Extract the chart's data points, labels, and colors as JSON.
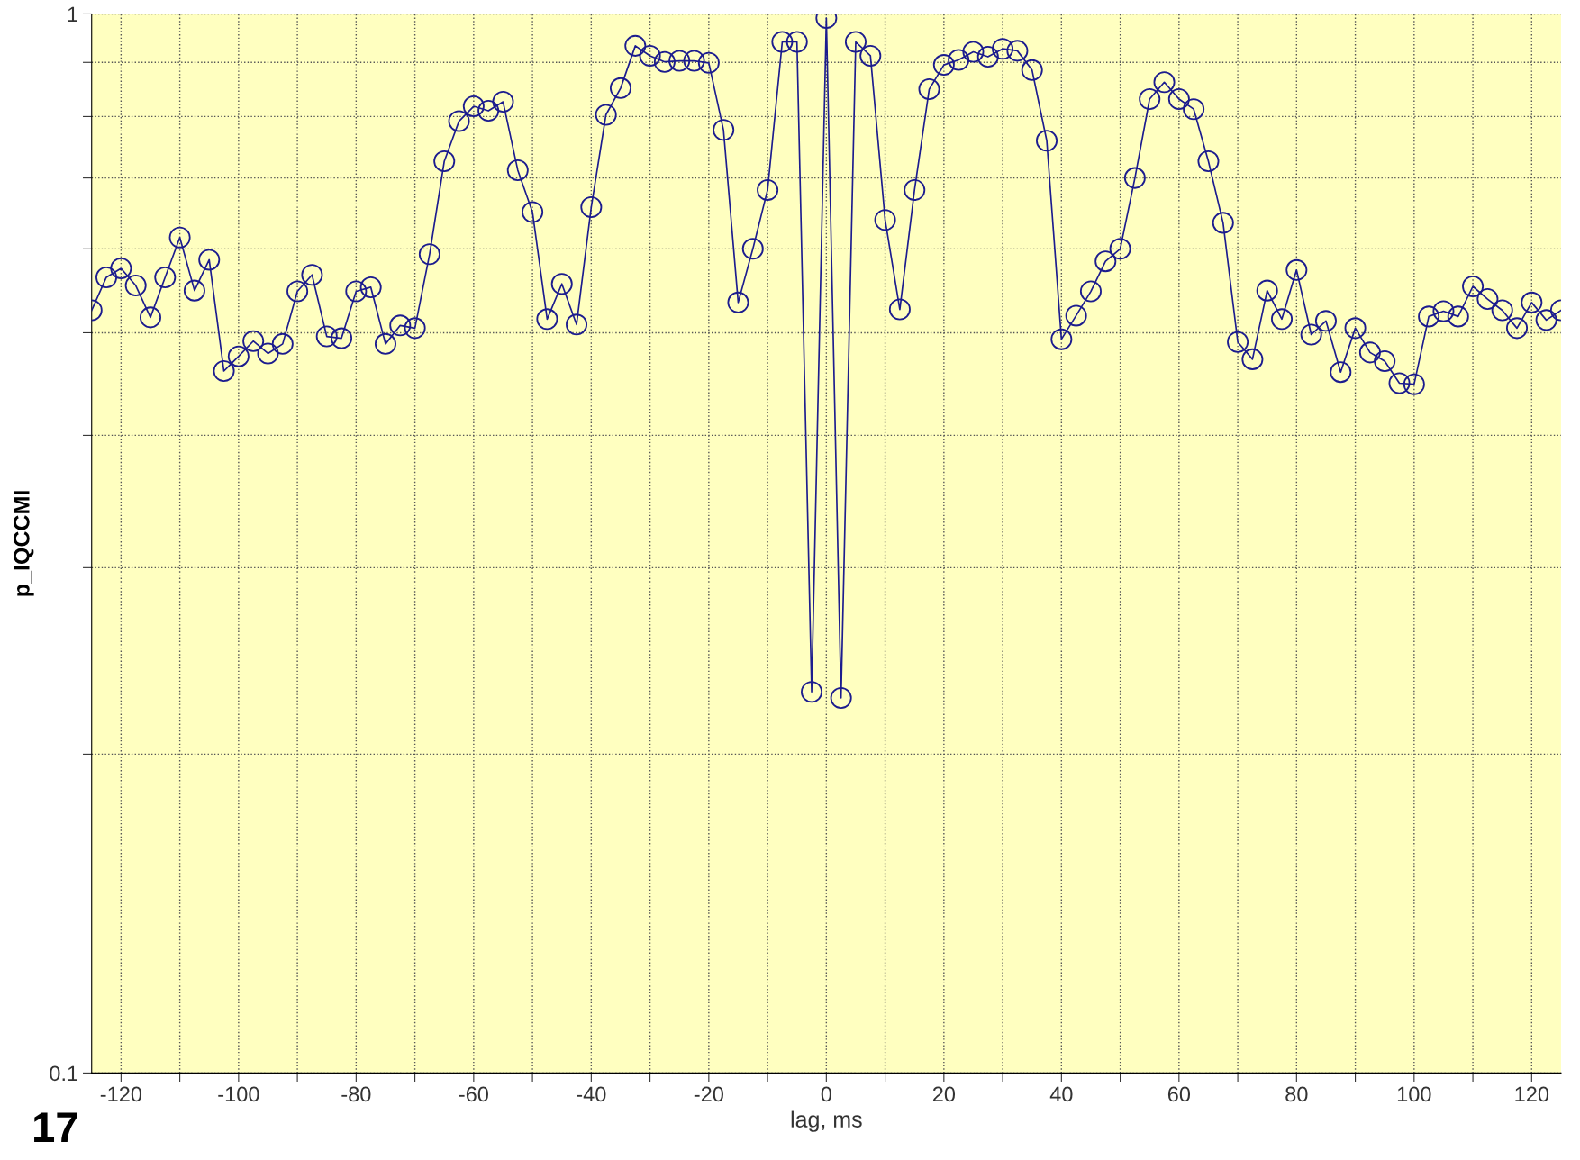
{
  "chart_data": {
    "type": "line",
    "xlabel": "lag, ms",
    "ylabel": "p_IQCCMI",
    "x": [
      -125,
      -122.5,
      -120,
      -117.5,
      -115,
      -112.5,
      -110,
      -107.5,
      -105,
      -102.5,
      -100,
      -97.5,
      -95,
      -92.5,
      -90,
      -87.5,
      -85,
      -82.5,
      -80,
      -77.5,
      -75,
      -72.5,
      -70,
      -67.5,
      -65,
      -62.5,
      -60,
      -57.5,
      -55,
      -52.5,
      -50,
      -47.5,
      -45,
      -42.5,
      -40,
      -37.5,
      -35,
      -32.5,
      -30,
      -27.5,
      -25,
      -22.5,
      -20,
      -17.5,
      -15,
      -12.5,
      -10,
      -7.5,
      -5,
      -2.5,
      0,
      2.5,
      5,
      7.5,
      10,
      12.5,
      15,
      17.5,
      20,
      22.5,
      25,
      27.5,
      30,
      32.5,
      35,
      37.5,
      40,
      42.5,
      45,
      47.5,
      50,
      52.5,
      55,
      57.5,
      60,
      62.5,
      65,
      67.5,
      70,
      72.5,
      75,
      77.5,
      80,
      82.5,
      85,
      87.5,
      90,
      92.5,
      95,
      97.5,
      100,
      102.5,
      105,
      107.5,
      110,
      112.5,
      115,
      117.5,
      120,
      122.5,
      125
    ],
    "series": [
      {
        "color": "#1c1c8e",
        "values": [
          0.525,
          0.564,
          0.575,
          0.554,
          0.517,
          0.564,
          0.615,
          0.548,
          0.586,
          0.46,
          0.475,
          0.491,
          0.478,
          0.488,
          0.547,
          0.567,
          0.496,
          0.494,
          0.547,
          0.552,
          0.488,
          0.508,
          0.505,
          0.593,
          0.726,
          0.792,
          0.818,
          0.81,
          0.826,
          0.712,
          0.65,
          0.515,
          0.556,
          0.509,
          0.657,
          0.803,
          0.851,
          0.933,
          0.913,
          0.901,
          0.903,
          0.903,
          0.899,
          0.777,
          0.534,
          0.6,
          0.682,
          0.941,
          0.941,
          0.229,
          0.991,
          0.226,
          0.941,
          0.913,
          0.639,
          0.526,
          0.682,
          0.849,
          0.895,
          0.905,
          0.921,
          0.911,
          0.927,
          0.923,
          0.885,
          0.759,
          0.493,
          0.519,
          0.547,
          0.584,
          0.6,
          0.7,
          0.831,
          0.862,
          0.831,
          0.813,
          0.726,
          0.635,
          0.49,
          0.472,
          0.548,
          0.515,
          0.573,
          0.498,
          0.513,
          0.459,
          0.505,
          0.479,
          0.47,
          0.448,
          0.447,
          0.518,
          0.524,
          0.518,
          0.553,
          0.538,
          0.525,
          0.505,
          0.534,
          0.514,
          0.525
        ]
      }
    ],
    "log": "y",
    "xlim": [
      -125,
      125
    ],
    "ylim": [
      0.1,
      1
    ],
    "xticks": [
      -120,
      {
        "value": -110,
        "label": null
      },
      -100,
      {
        "value": -90,
        "label": null
      },
      -80,
      {
        "value": -70,
        "label": null
      },
      -60,
      {
        "value": -50,
        "label": null
      },
      -40,
      {
        "value": -30,
        "label": null
      },
      -20,
      {
        "value": -10,
        "label": null
      },
      0,
      {
        "value": 10,
        "label": null
      },
      20,
      {
        "value": 30,
        "label": null
      },
      40,
      {
        "value": 50,
        "label": null
      },
      60,
      {
        "value": 70,
        "label": null
      },
      80,
      {
        "value": 90,
        "label": null
      },
      100,
      {
        "value": 110,
        "label": null
      },
      120
    ],
    "yticks": [
      {
        "value": 0.1,
        "label": "0.1"
      },
      {
        "value": 0.2,
        "label": null
      },
      {
        "value": 0.3,
        "label": null
      },
      {
        "value": 0.4,
        "label": null
      },
      {
        "value": 0.5,
        "label": null
      },
      {
        "value": 0.6,
        "label": null
      },
      {
        "value": 0.7,
        "label": null
      },
      {
        "value": 0.8,
        "label": null
      },
      {
        "value": 0.9,
        "label": null
      },
      1
    ],
    "grid": true,
    "marker": "circle",
    "line_style": "solid",
    "annotations": [
      "17"
    ]
  }
}
